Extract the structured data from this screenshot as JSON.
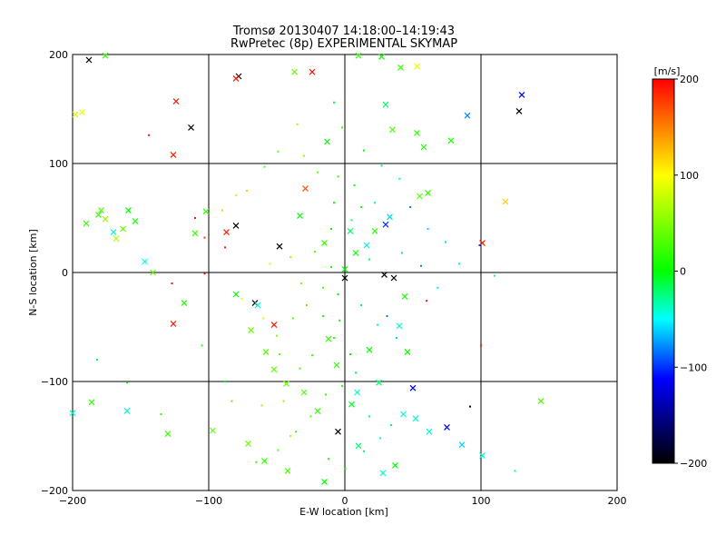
{
  "chart_data": {
    "type": "scatter",
    "title": "Tromsø 20130407 14:18:00–14:19:43",
    "subtitle": "RwPretec (8p) EXPERIMENTAL SKYMAP",
    "xlabel": "E-W location [km]",
    "ylabel": "N-S location [km]",
    "xlim": [
      -200,
      200
    ],
    "ylim": [
      -200,
      200
    ],
    "xticks": [
      -200,
      -100,
      0,
      100,
      200
    ],
    "yticks": [
      -200,
      -100,
      0,
      100,
      200
    ],
    "xtick_labels": [
      "−200",
      "−100",
      "0",
      "100",
      "200"
    ],
    "ytick_labels": [
      "−200",
      "−100",
      "0",
      "100",
      "200"
    ],
    "grid": true,
    "colorbar": {
      "label": "[m/s]",
      "range": [
        -200,
        200
      ],
      "ticks": [
        200,
        100,
        0,
        -100,
        -200
      ],
      "tick_labels": [
        "200",
        "100",
        "0",
        "−100",
        "−200"
      ],
      "colors": [
        "#ff0000",
        "#ffff00",
        "#00ff00",
        "#00ffff",
        "#0000ff",
        "#000000"
      ]
    },
    "series": [
      {
        "marker": "x",
        "points": [
          [
            -188,
            195,
            -200
          ],
          [
            -176,
            199,
            20
          ],
          [
            -198,
            145,
            80
          ],
          [
            -193,
            147,
            90
          ],
          [
            -126,
            108,
            190
          ],
          [
            -113,
            133,
            -200
          ],
          [
            -124,
            157,
            190
          ],
          [
            -78,
            180,
            -200
          ],
          [
            -80,
            178,
            190
          ],
          [
            -37,
            184,
            40
          ],
          [
            -24,
            184,
            190
          ],
          [
            -13,
            120,
            0
          ],
          [
            10,
            199,
            20
          ],
          [
            27,
            198,
            0
          ],
          [
            41,
            188,
            20
          ],
          [
            53,
            189,
            90
          ],
          [
            30,
            154,
            -20
          ],
          [
            35,
            131,
            30
          ],
          [
            53,
            128,
            20
          ],
          [
            58,
            115,
            10
          ],
          [
            78,
            121,
            10
          ],
          [
            90,
            144,
            -80
          ],
          [
            130,
            163,
            -120
          ],
          [
            128,
            148,
            -200
          ],
          [
            -190,
            45,
            20
          ],
          [
            -181,
            53,
            20
          ],
          [
            -179,
            57,
            30
          ],
          [
            -176,
            49,
            60
          ],
          [
            -170,
            37,
            -40
          ],
          [
            -168,
            31,
            70
          ],
          [
            -163,
            40,
            40
          ],
          [
            -159,
            57,
            0
          ],
          [
            -154,
            47,
            10
          ],
          [
            -147,
            10,
            -40
          ],
          [
            -141,
            0,
            40
          ],
          [
            -126,
            -47,
            190
          ],
          [
            -118,
            -28,
            10
          ],
          [
            -110,
            36,
            20
          ],
          [
            -102,
            56,
            20
          ],
          [
            -87,
            37,
            190
          ],
          [
            -80,
            43,
            -200
          ],
          [
            -80,
            -20,
            0
          ],
          [
            -66,
            -28,
            -200
          ],
          [
            -64,
            -30,
            -40
          ],
          [
            -52,
            -48,
            190
          ],
          [
            -48,
            24,
            -200
          ],
          [
            -33,
            52,
            0
          ],
          [
            -29,
            77,
            170
          ],
          [
            -15,
            27,
            20
          ],
          [
            4,
            38,
            -20
          ],
          [
            0,
            3,
            0
          ],
          [
            0,
            -5,
            -200
          ],
          [
            8,
            18,
            10
          ],
          [
            16,
            25,
            -40
          ],
          [
            22,
            38,
            20
          ],
          [
            30,
            44,
            -100
          ],
          [
            33,
            51,
            -60
          ],
          [
            29,
            -2,
            -200
          ],
          [
            36,
            -5,
            -200
          ],
          [
            44,
            -22,
            10
          ],
          [
            40,
            -49,
            -40
          ],
          [
            46,
            -73,
            0
          ],
          [
            50,
            -106,
            -120
          ],
          [
            43,
            -130,
            -40
          ],
          [
            52,
            -134,
            -40
          ],
          [
            62,
            -146,
            -40
          ],
          [
            75,
            -142,
            -120
          ],
          [
            86,
            -158,
            -60
          ],
          [
            101,
            -168,
            -40
          ],
          [
            118,
            65,
            120
          ],
          [
            101,
            27,
            190
          ],
          [
            55,
            70,
            30
          ],
          [
            61,
            73,
            20
          ],
          [
            144,
            -118,
            30
          ],
          [
            -200,
            -129,
            -40
          ],
          [
            -186,
            -119,
            20
          ],
          [
            -160,
            -127,
            -40
          ],
          [
            -130,
            -148,
            20
          ],
          [
            -97,
            -145,
            40
          ],
          [
            -71,
            -157,
            40
          ],
          [
            -59,
            -173,
            20
          ],
          [
            -42,
            -182,
            30
          ],
          [
            -15,
            -192,
            0
          ],
          [
            -5,
            -146,
            -200
          ],
          [
            5,
            -121,
            -10
          ],
          [
            10,
            -159,
            -20
          ],
          [
            28,
            -184,
            -40
          ],
          [
            37,
            -177,
            0
          ],
          [
            -69,
            -53,
            40
          ],
          [
            -58,
            -73,
            30
          ],
          [
            -52,
            -89,
            40
          ],
          [
            -43,
            -102,
            40
          ],
          [
            -30,
            -110,
            30
          ],
          [
            -20,
            -127,
            20
          ],
          [
            -12,
            -61,
            20
          ],
          [
            -6,
            -85,
            20
          ],
          [
            18,
            -71,
            0
          ],
          [
            25,
            -101,
            -20
          ],
          [
            9,
            -110,
            -40
          ]
        ]
      },
      {
        "marker": "dot",
        "points": [
          [
            -144,
            126,
            190
          ],
          [
            -110,
            50,
            190
          ],
          [
            -127,
            -10,
            190
          ],
          [
            -103,
            32,
            180
          ],
          [
            -90,
            57,
            120
          ],
          [
            -80,
            71,
            80
          ],
          [
            -88,
            23,
            190
          ],
          [
            -103,
            -1,
            200
          ],
          [
            -76,
            -24,
            100
          ],
          [
            -60,
            -42,
            90
          ],
          [
            -50,
            -58,
            50
          ],
          [
            -48,
            -75,
            30
          ],
          [
            -45,
            -118,
            60
          ],
          [
            -40,
            -150,
            70
          ],
          [
            -61,
            -122,
            60
          ],
          [
            -83,
            -118,
            30
          ],
          [
            -88,
            -100,
            0
          ],
          [
            -55,
            8,
            80
          ],
          [
            -40,
            14,
            60
          ],
          [
            -32,
            -10,
            40
          ],
          [
            -22,
            19,
            30
          ],
          [
            -10,
            5,
            10
          ],
          [
            -5,
            -20,
            0
          ],
          [
            12,
            -30,
            -20
          ],
          [
            24,
            -48,
            -40
          ],
          [
            38,
            -60,
            -60
          ],
          [
            31,
            -40,
            -80
          ],
          [
            18,
            12,
            -20
          ],
          [
            42,
            18,
            -60
          ],
          [
            56,
            6,
            -80
          ],
          [
            68,
            -14,
            -50
          ],
          [
            92,
            -123,
            -200
          ],
          [
            100,
            -67,
            190
          ],
          [
            99,
            25,
            -100
          ],
          [
            60,
            -26,
            190
          ],
          [
            -8,
            156,
            -10
          ],
          [
            -5,
            88,
            20
          ],
          [
            7,
            80,
            -10
          ],
          [
            -8,
            64,
            0
          ],
          [
            -10,
            40,
            0
          ],
          [
            5,
            48,
            -20
          ],
          [
            12,
            60,
            -10
          ],
          [
            22,
            64,
            -30
          ],
          [
            -20,
            92,
            40
          ],
          [
            -30,
            107,
            50
          ],
          [
            -49,
            111,
            40
          ],
          [
            -59,
            97,
            30
          ],
          [
            -72,
            75,
            120
          ],
          [
            -35,
            136,
            60
          ],
          [
            -2,
            133,
            20
          ],
          [
            14,
            112,
            0
          ],
          [
            27,
            98,
            -20
          ],
          [
            40,
            86,
            -50
          ],
          [
            48,
            60,
            -80
          ],
          [
            61,
            40,
            -60
          ],
          [
            74,
            28,
            -60
          ],
          [
            84,
            8,
            -40
          ],
          [
            110,
            -3,
            -30
          ],
          [
            125,
            -182,
            -30
          ],
          [
            -135,
            -130,
            20
          ],
          [
            -160,
            -101,
            0
          ],
          [
            -182,
            -80,
            -20
          ],
          [
            -105,
            -67,
            10
          ],
          [
            -8,
            -60,
            20
          ],
          [
            -16,
            -40,
            20
          ],
          [
            -24,
            -76,
            20
          ],
          [
            -33,
            -88,
            30
          ],
          [
            -38,
            -42,
            40
          ],
          [
            -28,
            -30,
            30
          ],
          [
            -16,
            -14,
            30
          ],
          [
            -4,
            -44,
            10
          ],
          [
            4,
            -75,
            0
          ],
          [
            8,
            -92,
            -20
          ],
          [
            -2,
            -104,
            10
          ],
          [
            -14,
            -112,
            20
          ],
          [
            -25,
            -132,
            30
          ],
          [
            -36,
            -146,
            30
          ],
          [
            -49,
            -163,
            30
          ],
          [
            -65,
            -174,
            20
          ],
          [
            -12,
            -171,
            10
          ],
          [
            0,
            -180,
            0
          ],
          [
            14,
            -164,
            -20
          ],
          [
            26,
            -152,
            -30
          ],
          [
            34,
            -140,
            -20
          ],
          [
            18,
            -132,
            -20
          ]
        ]
      }
    ]
  }
}
